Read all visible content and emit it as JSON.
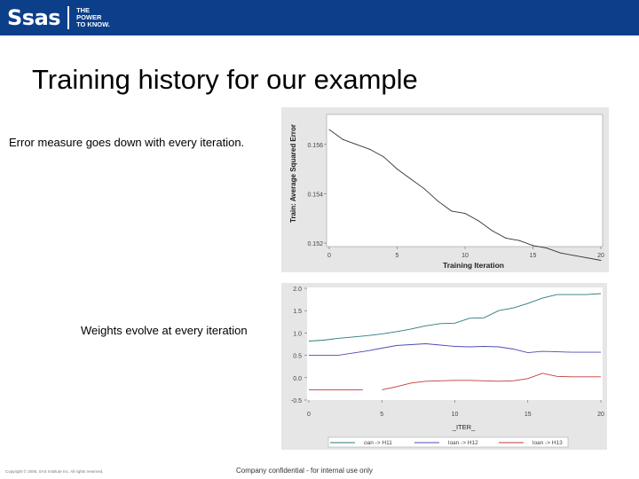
{
  "header": {
    "logo_text": "Ssas",
    "tagline": [
      "THE",
      "POWER",
      "TO KNOW."
    ],
    "background_color": "#0b3f8a"
  },
  "slide": {
    "title": "Training history for our example",
    "caption_top": "Error measure goes down with every iteration.",
    "caption_bottom": "Weights evolve at every iteration"
  },
  "footer": {
    "copyright": "Copyright © 2006, SAS Institute Inc. All rights reserved.",
    "confidential": "Company confidential - for internal use only"
  },
  "chart_data": [
    {
      "type": "line",
      "xlabel": "Training Iteration",
      "ylabel": "Train: Average Squared Error",
      "xlim": [
        0,
        20
      ],
      "ylim": [
        0.152,
        0.157
      ],
      "xticks": [
        0,
        5,
        10,
        15,
        20
      ],
      "xtick_labels": [
        "0",
        "5",
        "10",
        "15",
        "20"
      ],
      "yticks": [
        0.152,
        0.154,
        0.156
      ],
      "ytick_labels": [
        "0.152",
        "0.154",
        "0.156"
      ],
      "grid": false,
      "series": [
        {
          "color": "#333333",
          "x": [
            0,
            1,
            2,
            3,
            4,
            5,
            6,
            7,
            8,
            9,
            10,
            11,
            12,
            13,
            14,
            15,
            16,
            17,
            18,
            19,
            20
          ],
          "y": [
            0.1566,
            0.1562,
            0.156,
            0.1558,
            0.1555,
            0.155,
            0.1546,
            0.1542,
            0.1537,
            0.1533,
            0.1532,
            0.1529,
            0.1525,
            0.1522,
            0.1521,
            0.1519,
            0.1518,
            0.1516,
            0.1515,
            0.1514,
            0.1513
          ]
        }
      ]
    },
    {
      "type": "line",
      "xlabel": "_ITER_",
      "ylabel": "",
      "xlim": [
        0,
        20
      ],
      "ylim": [
        -0.5,
        2.0
      ],
      "xticks": [
        0,
        5,
        10,
        15,
        20
      ],
      "xtick_labels": [
        "0",
        "5",
        "10",
        "15",
        "20"
      ],
      "yticks": [
        -0.5,
        0.0,
        0.5,
        1.0,
        1.5,
        2.0
      ],
      "ytick_labels": [
        "-0.5",
        "0.0",
        "0.5",
        "1.0",
        "1.5",
        "2.0"
      ],
      "grid": false,
      "legend_position": "bottom",
      "series": [
        {
          "name": "oan -> H11",
          "color": "#2a7a78",
          "x": [
            0,
            1,
            2,
            3,
            4,
            5,
            6,
            7,
            8,
            9,
            10,
            11,
            12,
            13,
            14,
            15,
            16,
            17,
            18,
            19,
            20
          ],
          "y": [
            0.82,
            0.84,
            0.88,
            0.91,
            0.94,
            0.98,
            1.03,
            1.09,
            1.16,
            1.21,
            1.22,
            1.33,
            1.34,
            1.5,
            1.56,
            1.66,
            1.78,
            1.86,
            1.86,
            1.86,
            1.88
          ]
        },
        {
          "name": "loan -> H12",
          "color": "#4b4bb5",
          "x": [
            0,
            1,
            2,
            3,
            4,
            5,
            6,
            7,
            8,
            9,
            10,
            11,
            12,
            13,
            14,
            15,
            16,
            17,
            18,
            19,
            20
          ],
          "y": [
            0.5,
            0.5,
            0.5,
            0.55,
            0.6,
            0.66,
            0.72,
            0.74,
            0.76,
            0.73,
            0.7,
            0.69,
            0.7,
            0.69,
            0.64,
            0.56,
            0.59,
            0.58,
            0.57,
            0.57,
            0.57
          ]
        },
        {
          "name": "loan -> H13",
          "color": "#c03a3a",
          "x": [
            0,
            1,
            2,
            3,
            4,
            5,
            6,
            7,
            8,
            9,
            10,
            11,
            12,
            13,
            14,
            15,
            16,
            17,
            18,
            19,
            20
          ],
          "y": [
            null,
            null,
            null,
            null,
            null,
            -0.27,
            -0.2,
            -0.12,
            -0.08,
            -0.07,
            -0.06,
            -0.06,
            -0.07,
            -0.08,
            -0.07,
            -0.02,
            0.1,
            0.03,
            0.02,
            0.02,
            0.02
          ]
        }
      ],
      "pre_series": {
        "color": "#c03a3a",
        "x": [
          0,
          3.7
        ],
        "y": [
          -0.27,
          -0.27
        ]
      }
    }
  ]
}
